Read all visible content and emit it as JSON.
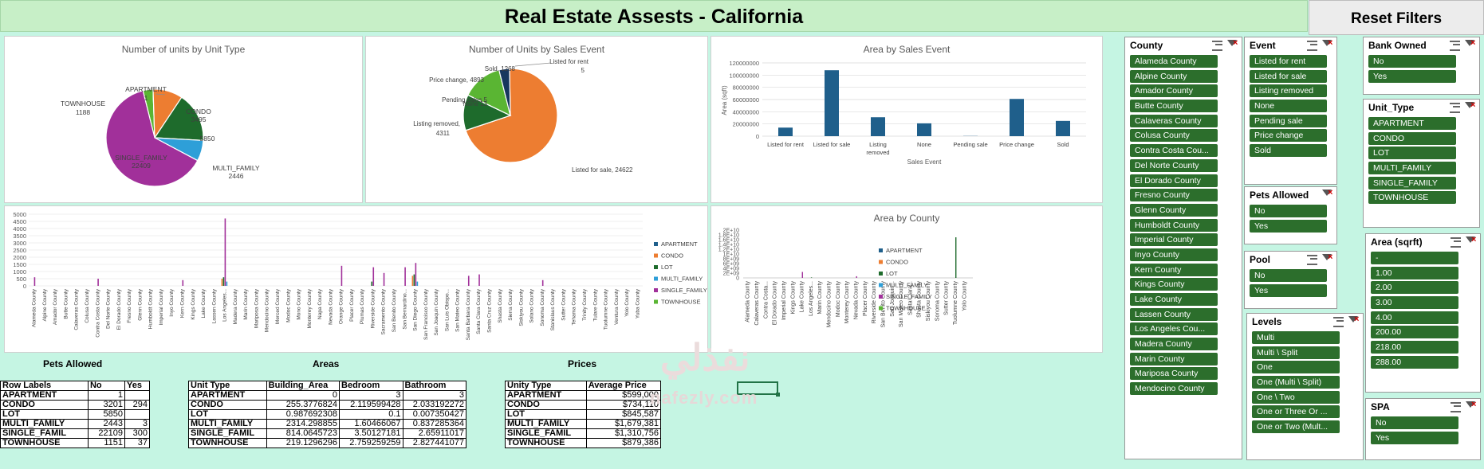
{
  "title": "Real Estate Assests - California",
  "reset_button": "Reset Filters",
  "charts": {
    "unit_type_pie": {
      "title": "Number of units by Unit Type",
      "labels": [
        {
          "name": "APARTMENT",
          "value": "1"
        },
        {
          "name": "CONDO",
          "value": "3495"
        },
        {
          "name": "LOT",
          "value": "5850"
        },
        {
          "name": "MULTI_FAMILY",
          "value": "2446"
        },
        {
          "name": "SINGLE_FAMILY",
          "value": "22409"
        },
        {
          "name": "TOWNHOUSE",
          "value": "1188"
        }
      ]
    },
    "sales_event_pie": {
      "title": "Number of Units by Sales Event",
      "labels": [
        {
          "text": "Listed for rent"
        },
        {
          "text": "5"
        },
        {
          "text": "Sold, 1268"
        },
        {
          "text": "Price change, 4893"
        },
        {
          "text": "Pending sales 5"
        },
        {
          "text": "None 13"
        },
        {
          "text": "Listing removed,"
        },
        {
          "text": "4311"
        },
        {
          "text": "Listed for sale, 24622"
        }
      ]
    },
    "area_sales_bar": {
      "title": "Area by Sales Event",
      "ylabel": "Area (sqft)",
      "xlabel": "Sales Event",
      "yticks": [
        "0",
        "20000000",
        "40000000",
        "60000000",
        "80000000",
        "100000000",
        "120000000"
      ],
      "categories": [
        "Listed for rent",
        "Listed for sale",
        "Listing",
        "removed",
        "None",
        "Pending sale",
        "Price change",
        "Sold"
      ]
    },
    "county_units": {
      "yticks": [
        "0",
        "500",
        "1000",
        "1500",
        "2000",
        "2500",
        "3000",
        "3500",
        "4000",
        "4500",
        "5000"
      ]
    },
    "area_county": {
      "title": "Area by County",
      "yticks": [
        "0",
        "2E+09",
        "4E+09",
        "6E+09",
        "8E+09",
        "1E+10",
        "1.2E+10",
        "1.4E+10",
        "1.6E+10",
        "1.8E+10",
        "2E+10"
      ],
      "counties": [
        "Alameda County",
        "Calaveras County",
        "Contra Costa...",
        "El Dorado County",
        "Imperial County",
        "Kings County",
        "Lake County",
        "Los Angeles...",
        "Marin County",
        "Mendocino County",
        "Modoc County",
        "Monterey County",
        "Nevada County",
        "Placer County",
        "Riverside County",
        "San Benito County",
        "San Joaquin...",
        "San Mateo County",
        "Santa Clara...",
        "Shasta County",
        "Siskiyou County",
        "Sonoma County",
        "Sutter County",
        "Tuolumne County",
        "Yolo County"
      ]
    },
    "legend": [
      "APARTMENT",
      "CONDO",
      "LOT",
      "MULTI_FAMILY",
      "SINGLE_FAMILY",
      "TOWNHOUSE"
    ],
    "colors": {
      "APARTMENT": "#1f5f8b",
      "CONDO": "#ed7d31",
      "LOT": "#1e6b2c",
      "MULTI_FAMILY": "#2e9fd8",
      "SINGLE_FAMILY": "#a1309a",
      "TOWNHOUSE": "#5ab533"
    },
    "counties_full": [
      "Alameda County",
      "Alpine County",
      "Amador County",
      "Butte County",
      "Calaveras County",
      "Colusa County",
      "Contra Costa County",
      "Del Norte County",
      "El Dorado County",
      "Fresno County",
      "Glenn County",
      "Humboldt County",
      "Imperial County",
      "Inyo County",
      "Kern County",
      "Kings County",
      "Lake County",
      "Lassen County",
      "Los Angeles...",
      "Madera County",
      "Marin County",
      "Mariposa County",
      "Mendocino County",
      "Merced County",
      "Modoc County",
      "Mono County",
      "Monterey County",
      "Napa County",
      "Nevada County",
      "Orange County",
      "Placer County",
      "Plumas County",
      "Riverside County",
      "Sacramento County",
      "San Benito County",
      "San Bernardino...",
      "San Diego County",
      "San Francisco County",
      "San Joaquin County",
      "San Luis Obispo...",
      "San Mateo County",
      "Santa Barbara County",
      "Santa Clara County",
      "Santa Cruz County",
      "Shasta County",
      "Sierra County",
      "Siskiyou County",
      "Solano County",
      "Sonoma County",
      "Stanislaus County",
      "Sutter County",
      "Tehama County",
      "Trinity County",
      "Tulare County",
      "Tuolumne County",
      "Ventura County",
      "Yolo County",
      "Yuba County"
    ]
  },
  "chart_data": [
    {
      "type": "pie",
      "title": "Number of units by Unit Type",
      "categories": [
        "APARTMENT",
        "CONDO",
        "LOT",
        "MULTI_FAMILY",
        "SINGLE_FAMILY",
        "TOWNHOUSE"
      ],
      "values": [
        1,
        3495,
        5850,
        2446,
        22409,
        1188
      ]
    },
    {
      "type": "pie",
      "title": "Number of Units by Sales Event",
      "categories": [
        "Listed for rent",
        "Listed for sale",
        "Listing removed",
        "None",
        "Pending sale",
        "Price change",
        "Sold"
      ],
      "values": [
        5,
        24622,
        4311,
        13,
        5,
        4893,
        1268
      ]
    },
    {
      "type": "bar",
      "title": "Area by Sales Event",
      "categories": [
        "Listed for rent",
        "Listed for sale",
        "Listing removed",
        "None",
        "Pending sale",
        "Price change",
        "Sold"
      ],
      "values": [
        14000000,
        108000000,
        31000000,
        21000000,
        300000,
        61000000,
        25000000
      ],
      "xlabel": "Sales Event",
      "ylabel": "Area (sqft)",
      "ylim": [
        0,
        120000000
      ]
    },
    {
      "type": "bar",
      "title": "",
      "ylim": [
        0,
        5000
      ],
      "legend": "right",
      "series": [
        {
          "name": "SINGLE_FAMILY",
          "points": [
            [
              0,
              600
            ],
            [
              6,
              500
            ],
            [
              14,
              400
            ],
            [
              18,
              4700
            ],
            [
              29,
              1400
            ],
            [
              32,
              1300
            ],
            [
              33,
              900
            ],
            [
              35,
              1300
            ],
            [
              36,
              1600
            ],
            [
              41,
              700
            ],
            [
              42,
              800
            ],
            [
              48,
              400
            ]
          ]
        },
        {
          "name": "LOT",
          "points": [
            [
              18,
              600
            ],
            [
              32,
              300
            ],
            [
              36,
              800
            ]
          ]
        },
        {
          "name": "CONDO",
          "points": [
            [
              18,
              500
            ],
            [
              36,
              700
            ]
          ]
        },
        {
          "name": "MULTI_FAMILY",
          "points": [
            [
              18,
              300
            ],
            [
              36,
              300
            ]
          ]
        }
      ]
    },
    {
      "type": "bar",
      "title": "Area by County",
      "ylim": [
        0,
        20000000000
      ],
      "legend": "right",
      "series": [
        {
          "name": "SINGLE_FAMILY",
          "points": [
            [
              6,
              2500000000
            ],
            [
              12,
              700000000
            ]
          ]
        },
        {
          "name": "LOT",
          "points": [
            [
              23,
              17000000000
            ],
            [
              7,
              200000000
            ]
          ]
        }
      ]
    }
  ],
  "slicers": {
    "county": {
      "title": "County",
      "items": [
        "Alameda County",
        "Alpine County",
        "Amador County",
        "Butte County",
        "Calaveras County",
        "Colusa County",
        "Contra Costa Cou...",
        "Del Norte County",
        "El Dorado County",
        "Fresno County",
        "Glenn County",
        "Humboldt County",
        "Imperial County",
        "Inyo County",
        "Kern County",
        "Kings County",
        "Lake County",
        "Lassen County",
        "Los Angeles Cou...",
        "Madera County",
        "Marin County",
        "Mariposa County",
        "Mendocino County"
      ]
    },
    "event": {
      "title": "Event",
      "items": [
        "Listed for rent",
        "Listed for sale",
        "Listing removed",
        "None",
        "Pending sale",
        "Price change",
        "Sold"
      ]
    },
    "pets": {
      "title": "Pets Allowed",
      "items": [
        "No",
        "Yes"
      ]
    },
    "pool": {
      "title": "Pool",
      "items": [
        "No",
        "Yes"
      ]
    },
    "levels": {
      "title": "Levels",
      "items": [
        "Multi",
        "Multi \\ Split",
        "One",
        "One (Multi \\ Split)",
        "One \\ Two",
        "One or Three Or ...",
        "One or Two (Mult..."
      ]
    },
    "bank": {
      "title": "Bank Owned",
      "items": [
        "No",
        "Yes"
      ]
    },
    "unit_type": {
      "title": "Unit_Type",
      "items": [
        "APARTMENT",
        "CONDO",
        "LOT",
        "MULTI_FAMILY",
        "SINGLE_FAMILY",
        "TOWNHOUSE"
      ]
    },
    "area": {
      "title": "Area (sqrft)",
      "items": [
        "-",
        "1.00",
        "2.00",
        "3.00",
        "4.00",
        "200.00",
        "218.00",
        "288.00"
      ]
    },
    "spa": {
      "title": "SPA",
      "items": [
        "No",
        "Yes"
      ]
    }
  },
  "pets_table": {
    "title": "Pets Allowed",
    "headers": [
      "Row Labels",
      "No",
      "Yes"
    ],
    "rows": [
      [
        "APARTMENT",
        "1",
        ""
      ],
      [
        "CONDO",
        "3201",
        "294"
      ],
      [
        "LOT",
        "5850",
        ""
      ],
      [
        "MULTI_FAMILY",
        "2443",
        "3"
      ],
      [
        "SINGLE_FAMIL",
        "22109",
        "300"
      ],
      [
        "TOWNHOUSE",
        "1151",
        "37"
      ]
    ]
  },
  "areas_table": {
    "title": "Areas",
    "headers": [
      "Unit Type",
      "Building_Area",
      "Bedroom",
      "Bathroom"
    ],
    "rows": [
      [
        "APARTMENT",
        "0",
        "3",
        "3"
      ],
      [
        "CONDO",
        "255.3776824",
        "2.119599428",
        "2.033192272"
      ],
      [
        "LOT",
        "0.987692308",
        "0.1",
        "0.007350427"
      ],
      [
        "MULTI_FAMILY",
        "2314.298855",
        "1.60466067",
        "0.837285364"
      ],
      [
        "SINGLE_FAMIL",
        "814.0645723",
        "3.50127181",
        "2.65911017"
      ],
      [
        "TOWNHOUSE",
        "219.1296296",
        "2.759259259",
        "2.827441077"
      ]
    ]
  },
  "prices_table": {
    "title": "Prices",
    "headers": [
      "Unity Type",
      "Average Price"
    ],
    "rows": [
      [
        "APARTMENT",
        "$599,000"
      ],
      [
        "CONDO",
        "$734,110"
      ],
      [
        "LOT",
        "$845,587"
      ],
      [
        "MULTI_FAMILY",
        "$1,679,381"
      ],
      [
        "SINGLE_FAMIL",
        "$1,310,756"
      ],
      [
        "TOWNHOUSE",
        "$879,386"
      ]
    ]
  },
  "watermark": {
    "arabic": "نفذلي",
    "latin": "nafezly.com"
  }
}
